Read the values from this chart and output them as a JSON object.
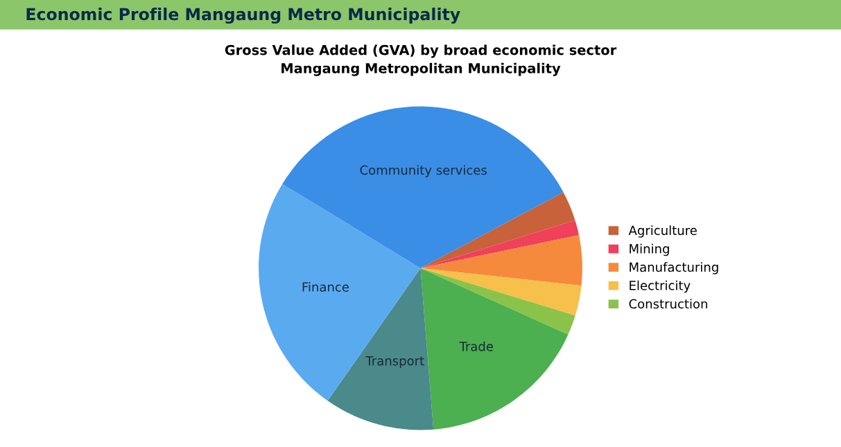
{
  "chart_data": {
    "type": "pie",
    "title": "Gross Value Added (GVA) by broad economic sector\nMangaung Metropolitan Municipality",
    "annotations": [
      "Economic Profile Mangaung Metro Municipality"
    ],
    "categories": [
      "Agriculture",
      "Mining",
      "Manufacturing",
      "Electricity",
      "Construction",
      "Trade",
      "Transport",
      "Finance",
      "Community services"
    ],
    "values": [
      3,
      1.5,
      5,
      3,
      2,
      17,
      11,
      24,
      33.5
    ],
    "colors": [
      "#c8623a",
      "#f0405a",
      "#f58a3c",
      "#f7c04a",
      "#8bc34a",
      "#4caf50",
      "#4a8a8a",
      "#5aaaf0",
      "#3a8ee6"
    ],
    "legend": "right"
  }
}
